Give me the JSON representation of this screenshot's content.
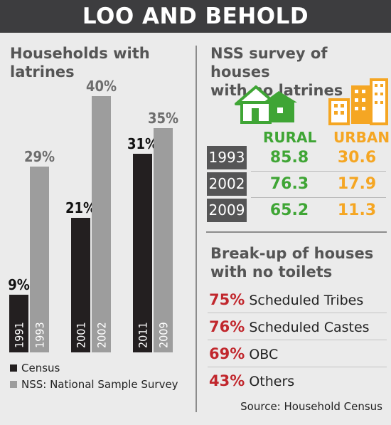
{
  "banner": {
    "title": "LOO AND BEHOLD"
  },
  "left_panel": {
    "title_line1": "Households with",
    "title_line2": "latrines"
  },
  "legend": {
    "census": "Census",
    "nss": "NSS: National Sample Survey"
  },
  "colors": {
    "census": "#231f20",
    "nss": "#9d9d9d",
    "rural": "#3fa535",
    "urban": "#f5a623",
    "highlight": "#c1272d"
  },
  "chart_data": {
    "type": "bar",
    "title": "Households with latrines",
    "unit": "%",
    "ylim": [
      0,
      45
    ],
    "groups": [
      {
        "census_year": "1991",
        "census_value": 9,
        "nss_year": "1993",
        "nss_value": 29
      },
      {
        "census_year": "2001",
        "census_value": 21,
        "nss_year": "2002",
        "nss_value": 40
      },
      {
        "census_year": "2011",
        "census_value": 31,
        "nss_year": "2009",
        "nss_value": 35
      }
    ],
    "series": [
      {
        "name": "Census",
        "values": [
          9,
          21,
          31
        ]
      },
      {
        "name": "NSS: National Sample Survey",
        "values": [
          29,
          40,
          35
        ]
      }
    ]
  },
  "nss_table": {
    "title_line1": "NSS survey of houses",
    "title_line2": "with no latrines",
    "rural_label": "RURAL",
    "urban_label": "URBAN",
    "rural_icon": "rural-house-icon",
    "urban_icon": "urban-buildings-icon",
    "rows": [
      {
        "year": "1993",
        "rural": "85.8",
        "urban": "30.6"
      },
      {
        "year": "2002",
        "rural": "76.3",
        "urban": "17.9"
      },
      {
        "year": "2009",
        "rural": "65.2",
        "urban": "11.3"
      }
    ]
  },
  "breakup": {
    "title_line1": "Break-up of houses",
    "title_line2": "with no toilets",
    "items": [
      {
        "pct": "75%",
        "label": "Scheduled Tribes"
      },
      {
        "pct": "76%",
        "label": "Scheduled Castes"
      },
      {
        "pct": "69%",
        "label": "OBC"
      },
      {
        "pct": "43%",
        "label": "Others"
      }
    ]
  },
  "source": "Source: Household Census"
}
